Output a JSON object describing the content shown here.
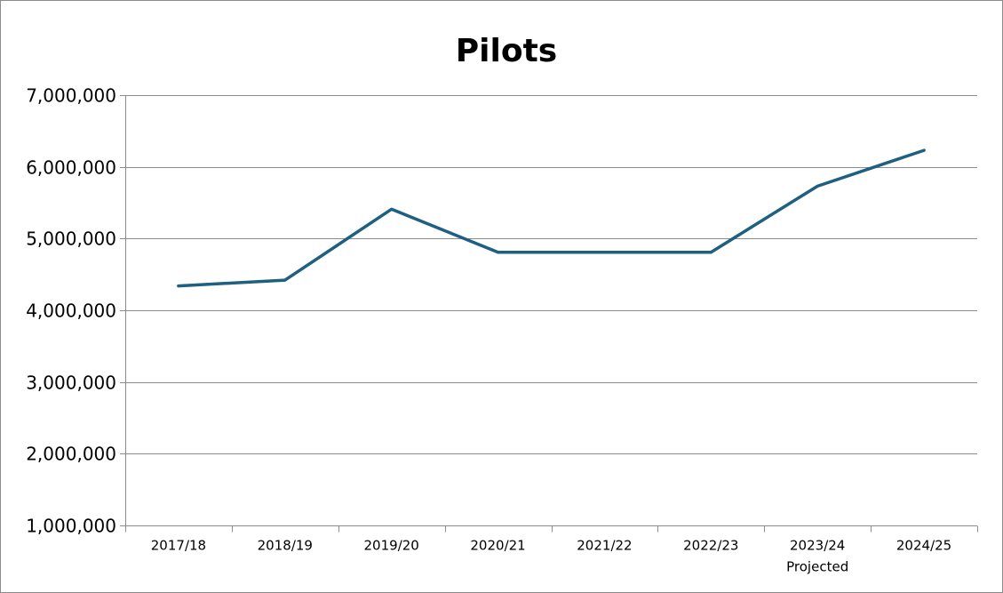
{
  "chart_data": {
    "type": "line",
    "title": "Pilots",
    "xlabel": "",
    "ylabel": "",
    "categories": [
      "2017/18",
      "2018/19",
      "2019/20",
      "2020/21",
      "2021/22",
      "2022/23",
      "2023/24\nProjected",
      "2024/25"
    ],
    "category_labels": [
      [
        "2017/18"
      ],
      [
        "2018/19"
      ],
      [
        "2019/20"
      ],
      [
        "2020/21"
      ],
      [
        "2021/22"
      ],
      [
        "2022/23"
      ],
      [
        "2023/24",
        "Projected"
      ],
      [
        "2024/25"
      ]
    ],
    "series": [
      {
        "values": [
          4340000,
          4420000,
          5410000,
          4810000,
          4810000,
          4810000,
          5730000,
          6230000
        ],
        "color": "#1f5f7f"
      }
    ],
    "ylim": [
      1000000,
      7000000
    ],
    "yticks": [
      1000000,
      2000000,
      3000000,
      4000000,
      5000000,
      6000000,
      7000000
    ],
    "ytick_labels": [
      "1,000,000",
      "2,000,000",
      "3,000,000",
      "4,000,000",
      "5,000,000",
      "6,000,000",
      "7,000,000"
    ],
    "grid": true,
    "legend": "none",
    "gridline_color": "#8c8c8c"
  }
}
